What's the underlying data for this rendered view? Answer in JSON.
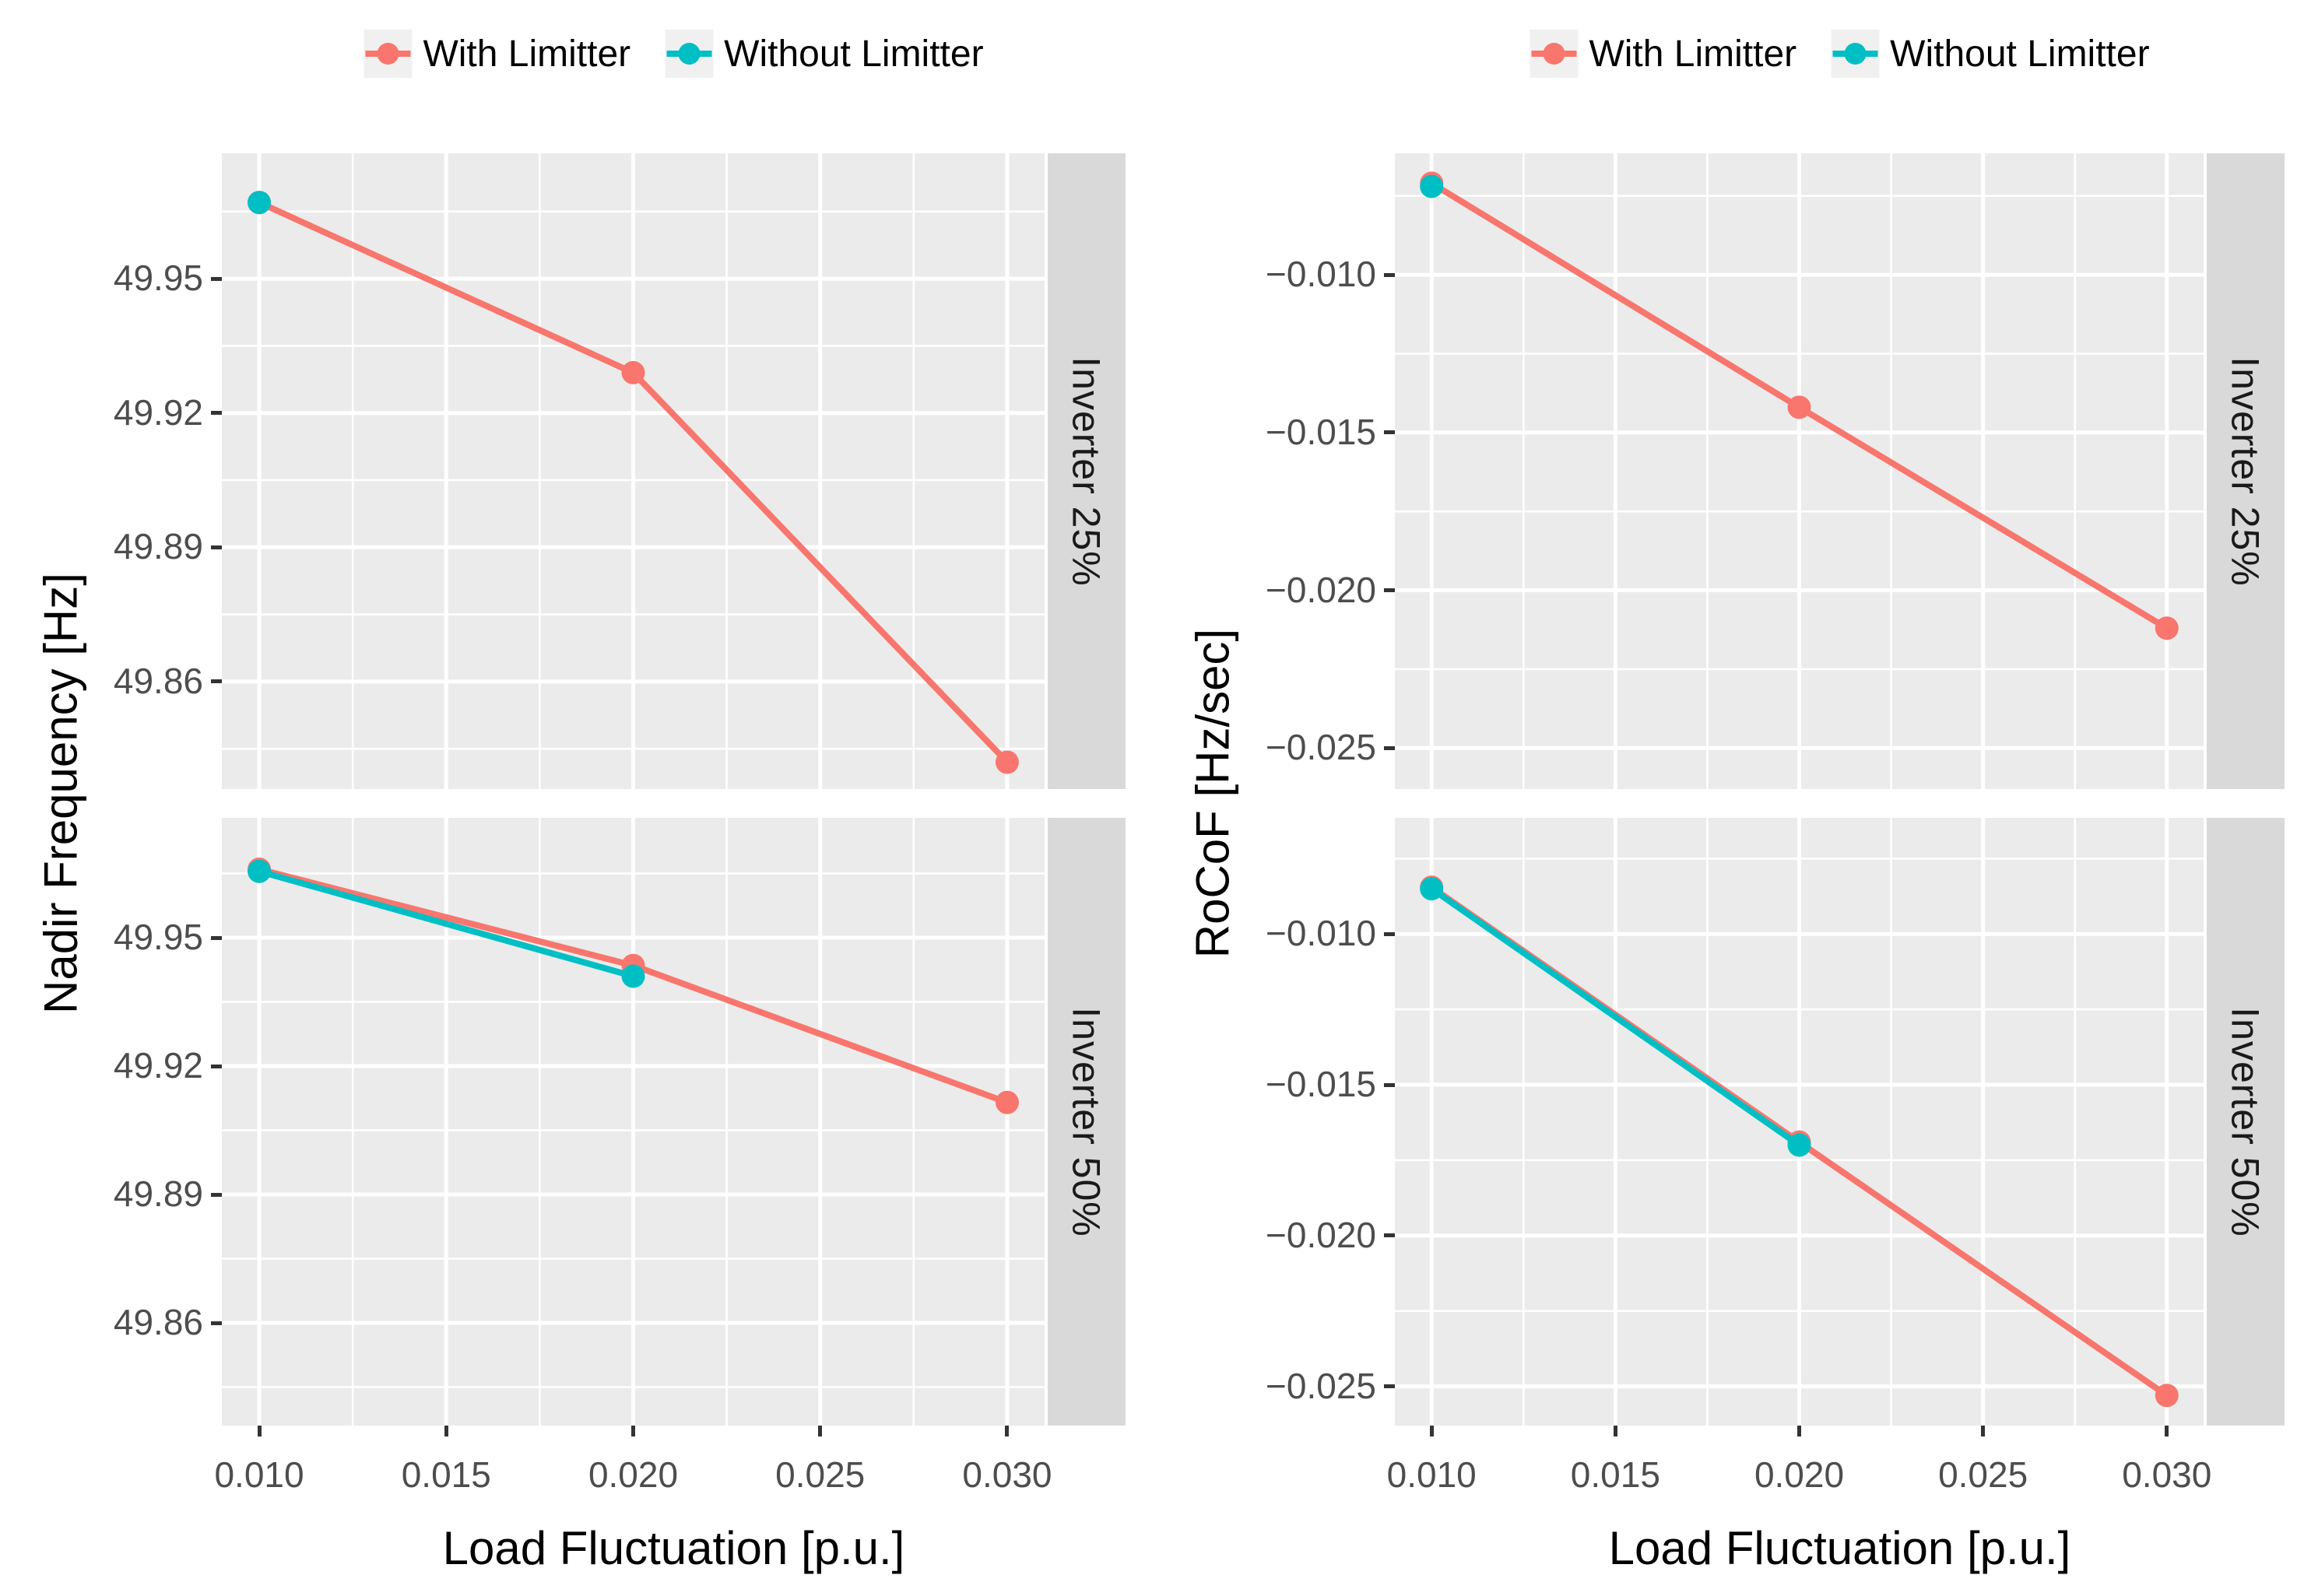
{
  "legend": {
    "items": [
      {
        "label": "With Limitter",
        "color": "#F8766D"
      },
      {
        "label": "Without Limitter",
        "color": "#00BFC4"
      }
    ]
  },
  "colors": {
    "panel_background": "#EBEBEB",
    "strip_background": "#D9D9D9",
    "gridline": "#FFFFFF",
    "axis_text": "#4D4D4D",
    "tick_mark": "#333333",
    "with_limitter": "#F8766D",
    "without_limitter": "#00BFC4"
  },
  "chart_data": [
    {
      "type": "line",
      "title": "",
      "xlabel": "Load Fluctuation [p.u.]",
      "ylabel": "Nadir Frequency [Hz]",
      "legend_position": "top",
      "grid": true,
      "xlim": [
        0.009,
        0.031
      ],
      "ylim": [
        49.836,
        49.978
      ],
      "x_ticks": [
        0.01,
        0.015,
        0.02,
        0.025,
        0.03
      ],
      "x_tick_labels": [
        "0.010",
        "0.015",
        "0.020",
        "0.025",
        "0.030"
      ],
      "x_minor_gridlines": [
        0.0125,
        0.0175,
        0.0225,
        0.0275
      ],
      "y_ticks": [
        49.95,
        49.92,
        49.89,
        49.86
      ],
      "y_tick_labels": [
        "49.95",
        "49.92",
        "49.89",
        "49.86"
      ],
      "y_minor_gridlines": [
        49.965,
        49.935,
        49.905,
        49.875,
        49.845
      ],
      "facets": [
        {
          "label": "Inverter 25%",
          "series": [
            {
              "name": "With Limitter",
              "color": "#F8766D",
              "x": [
                0.01,
                0.02,
                0.03
              ],
              "y": [
                49.967,
                49.929,
                49.842
              ]
            },
            {
              "name": "Without Limitter",
              "color": "#00BFC4",
              "x": [
                0.01
              ],
              "y": [
                49.967
              ]
            }
          ]
        },
        {
          "label": "Inverter 50%",
          "series": [
            {
              "name": "With Limitter",
              "color": "#F8766D",
              "x": [
                0.01,
                0.02,
                0.03
              ],
              "y": [
                49.966,
                49.9435,
                49.9115
              ]
            },
            {
              "name": "Without Limitter",
              "color": "#00BFC4",
              "x": [
                0.01,
                0.02
              ],
              "y": [
                49.9655,
                49.941
              ]
            }
          ]
        }
      ]
    },
    {
      "type": "line",
      "title": "",
      "xlabel": "Load Fluctuation [p.u.]",
      "ylabel": "RoCoF [Hz/sec]",
      "legend_position": "top",
      "grid": true,
      "xlim": [
        0.009,
        0.031
      ],
      "ylim": [
        -0.0263,
        -0.00615
      ],
      "x_ticks": [
        0.01,
        0.015,
        0.02,
        0.025,
        0.03
      ],
      "x_tick_labels": [
        "0.010",
        "0.015",
        "0.020",
        "0.025",
        "0.030"
      ],
      "x_minor_gridlines": [
        0.0125,
        0.0175,
        0.0225,
        0.0275
      ],
      "y_ticks": [
        -0.01,
        -0.015,
        -0.02,
        -0.025
      ],
      "y_tick_labels": [
        "−0.010",
        "−0.015",
        "−0.020",
        "−0.025"
      ],
      "y_minor_gridlines": [
        -0.0075,
        -0.0125,
        -0.0175,
        -0.0225
      ],
      "facets": [
        {
          "label": "Inverter 25%",
          "series": [
            {
              "name": "With Limitter",
              "color": "#F8766D",
              "x": [
                0.01,
                0.02,
                0.03
              ],
              "y": [
                -0.0071,
                -0.0142,
                -0.0212
              ]
            },
            {
              "name": "Without Limitter",
              "color": "#00BFC4",
              "x": [
                0.01
              ],
              "y": [
                -0.0072
              ]
            }
          ]
        },
        {
          "label": "Inverter 50%",
          "series": [
            {
              "name": "With Limitter",
              "color": "#F8766D",
              "x": [
                0.01,
                0.02,
                0.03
              ],
              "y": [
                -0.00845,
                -0.0169,
                -0.0253
              ]
            },
            {
              "name": "Without Limitter",
              "color": "#00BFC4",
              "x": [
                0.01,
                0.02
              ],
              "y": [
                -0.0085,
                -0.017
              ]
            }
          ]
        }
      ]
    }
  ]
}
